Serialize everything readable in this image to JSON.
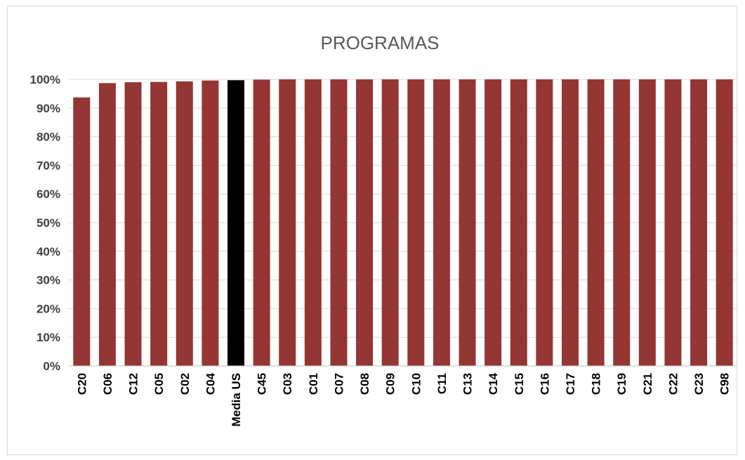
{
  "chart_data": {
    "type": "bar",
    "title": "PROGRAMAS",
    "xlabel": "",
    "ylabel": "",
    "ylim": [
      0,
      100
    ],
    "yticks": [
      "0%",
      "10%",
      "20%",
      "30%",
      "40%",
      "50%",
      "60%",
      "70%",
      "80%",
      "90%",
      "100%"
    ],
    "grid": true,
    "legend": "none",
    "categories": [
      "C20",
      "C06",
      "C12",
      "C05",
      "C02",
      "C04",
      "Media US",
      "C45",
      "C03",
      "C01",
      "C07",
      "C08",
      "C09",
      "C10",
      "C11",
      "C13",
      "C14",
      "C15",
      "C16",
      "C17",
      "C18",
      "C19",
      "C21",
      "C22",
      "C23",
      "C98"
    ],
    "values": [
      93.7,
      98.7,
      99.0,
      99.1,
      99.3,
      99.6,
      99.7,
      99.9,
      100,
      100,
      100,
      100,
      100,
      100,
      100,
      100,
      100,
      100,
      100,
      100,
      100,
      100,
      100,
      100,
      100,
      100
    ],
    "highlight_category": "Media US",
    "colors": {
      "bar": "#943634",
      "highlight": "#000000",
      "grid": "#d9d9d9",
      "axis": "#bfbfbf"
    }
  }
}
